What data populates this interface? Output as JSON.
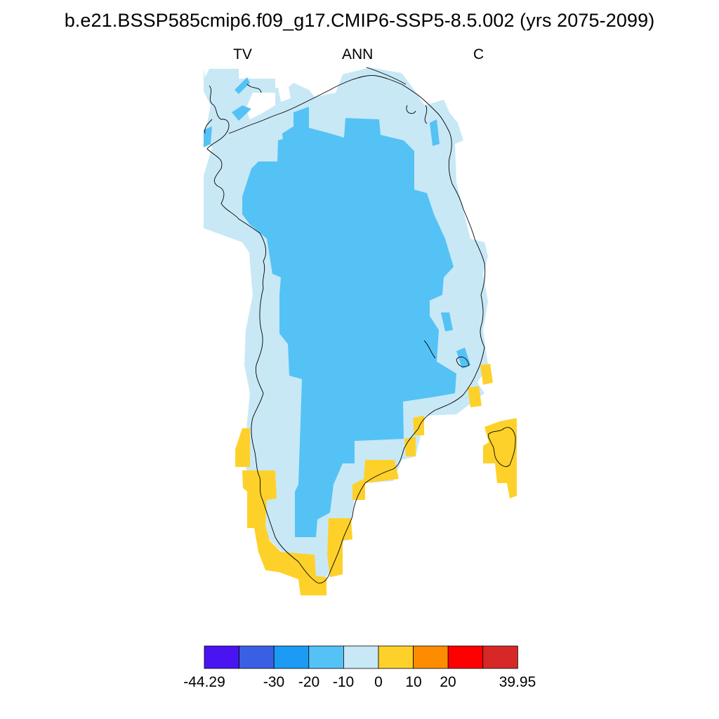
{
  "title": "b.e21.BSSP585cmip6.f09_g17.CMIP6-SSP5-8.5.002 (yrs 2075-2099)",
  "subtitles": {
    "left": "TV",
    "center": "ANN",
    "right": "C"
  },
  "colors": {
    "bin_lt_m30": "#4a14f2",
    "bin_m30_m20": "#3b5fe3",
    "bin_m20_m10": "#1c9bf5",
    "bin_m10_0_dark": "#55c2f5",
    "bin_m10_0_light": "#c8e8f6",
    "bin_0_10": "#fed12a",
    "bin_10_20": "#fd8c00",
    "bin_20_30": "#fe0000",
    "bin_gt_30": "#d72828",
    "coastline": "#000000"
  },
  "colorbar": {
    "colors": [
      "#4a14f2",
      "#3b5fe3",
      "#1c9bf5",
      "#55c2f5",
      "#c8e8f6",
      "#fed12a",
      "#fd8c00",
      "#fe0000",
      "#d72828"
    ],
    "labels": [
      "-44.29",
      "-30",
      "-20",
      "-10",
      "0",
      "10",
      "20",
      "39.95"
    ]
  }
}
